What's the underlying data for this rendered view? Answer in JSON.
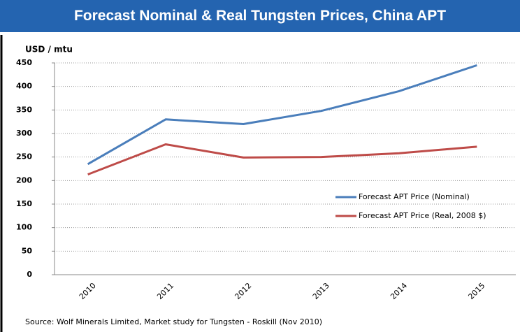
{
  "chart_data": {
    "type": "line",
    "title": "Forecast Nominal & Real Tungsten Prices, China APT",
    "y_label": "USD / mtu",
    "categories": [
      "2010",
      "2011",
      "2012",
      "2013",
      "2014",
      "2015"
    ],
    "series": [
      {
        "name": "Forecast APT Price (Nominal)",
        "color": "#4a7ebb",
        "values": [
          235,
          330,
          320,
          348,
          390,
          445
        ]
      },
      {
        "name": "Forecast APT Price (Real, 2008 $)",
        "color": "#be4b48",
        "values": [
          213,
          277,
          249,
          250,
          258,
          272
        ]
      }
    ],
    "ylim": [
      0,
      450
    ],
    "yticks": [
      0,
      50,
      100,
      150,
      200,
      250,
      300,
      350,
      400,
      450
    ],
    "grid": true,
    "source": "Source:  Wolf Minerals Limited, Market study for Tungsten - Roskill (Nov 2010)"
  }
}
